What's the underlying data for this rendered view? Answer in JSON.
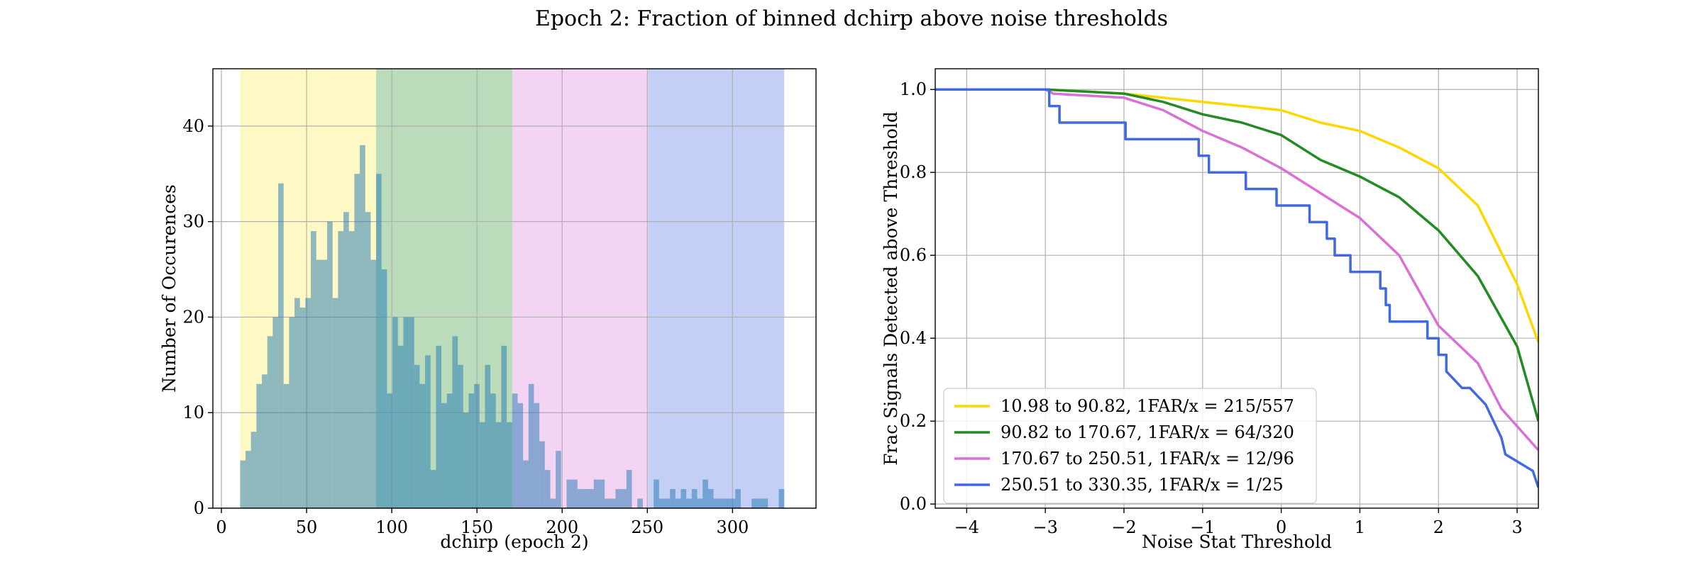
{
  "figure": {
    "title": "Epoch 2: Fraction of binned dchirp above noise thresholds"
  },
  "chart_data": [
    {
      "type": "bar",
      "subtype": "histogram",
      "xlabel": "dchirp (epoch 2)",
      "ylabel": "Number of Occurences",
      "xlim": [
        -5,
        349
      ],
      "ylim": [
        0,
        46
      ],
      "xticks": [
        0,
        50,
        100,
        150,
        200,
        250,
        300
      ],
      "yticks": [
        0,
        10,
        20,
        30,
        40
      ],
      "grid": true,
      "bin_start": 10.98,
      "bin_width": 3.1937,
      "shaded_ranges": [
        {
          "from": 10.98,
          "to": 90.82,
          "color": "#fde93a"
        },
        {
          "from": 90.82,
          "to": 170.67,
          "color": "#1f8a1f"
        },
        {
          "from": 170.67,
          "to": 250.51,
          "color": "#da70d6"
        },
        {
          "from": 250.51,
          "to": 330.35,
          "color": "#3c5fe0"
        }
      ],
      "bar_color": "#1f77b4",
      "counts": [
        5,
        6,
        8,
        13,
        14,
        18,
        20,
        34,
        13,
        20,
        22,
        21,
        22,
        29,
        26,
        26,
        30,
        22,
        29,
        31,
        29,
        35,
        38,
        31,
        26,
        35,
        25,
        12,
        20,
        17,
        20,
        20,
        15,
        13,
        16,
        4,
        17,
        11,
        12,
        18,
        15,
        10,
        12,
        13,
        9,
        15,
        12,
        9,
        17,
        9,
        12,
        11,
        5,
        13,
        11,
        7,
        4,
        1,
        6,
        0,
        3,
        3,
        2,
        2,
        2,
        3,
        3,
        1,
        1,
        2,
        2,
        4,
        0,
        1,
        0,
        0,
        3,
        1,
        1,
        2,
        1,
        2,
        1,
        2,
        1,
        3,
        2,
        1,
        1,
        1,
        1,
        2,
        0,
        0,
        1,
        1,
        1,
        0,
        0,
        2
      ]
    },
    {
      "type": "line",
      "xlabel": "Noise Stat Threshold",
      "ylabel": "Frac Signals Detected above Threshold",
      "xlim": [
        -4.4,
        3.27
      ],
      "ylim": [
        -0.01,
        1.05
      ],
      "xticks": [
        -4,
        -3,
        -2,
        -1,
        0,
        1,
        2,
        3
      ],
      "xtick_labels": [
        "−4",
        "−3",
        "−2",
        "−1",
        "0",
        "1",
        "2",
        "3"
      ],
      "yticks": [
        0.0,
        0.2,
        0.4,
        0.6,
        0.8,
        1.0
      ],
      "ytick_labels": [
        "0.0",
        "0.2",
        "0.4",
        "0.6",
        "0.8",
        "1.0"
      ],
      "grid": true,
      "legend_position": "lower-left",
      "series": [
        {
          "name": "10.98 to 90.82, 1FAR/x = 215/557",
          "color": "#ffd700",
          "step": false,
          "points": [
            [
              -4.4,
              1.0
            ],
            [
              -3.0,
              1.0
            ],
            [
              -2.0,
              0.99
            ],
            [
              -1.5,
              0.98
            ],
            [
              -1.0,
              0.97
            ],
            [
              -0.5,
              0.96
            ],
            [
              0.0,
              0.95
            ],
            [
              0.5,
              0.92
            ],
            [
              1.0,
              0.9
            ],
            [
              1.5,
              0.86
            ],
            [
              2.0,
              0.81
            ],
            [
              2.5,
              0.72
            ],
            [
              3.0,
              0.53
            ],
            [
              3.27,
              0.39
            ]
          ]
        },
        {
          "name": "90.82 to 170.67, 1FAR/x = 64/320",
          "color": "#228b22",
          "step": false,
          "points": [
            [
              -4.4,
              1.0
            ],
            [
              -3.0,
              1.0
            ],
            [
              -2.0,
              0.99
            ],
            [
              -1.5,
              0.97
            ],
            [
              -1.0,
              0.94
            ],
            [
              -0.5,
              0.92
            ],
            [
              0.0,
              0.89
            ],
            [
              0.5,
              0.83
            ],
            [
              1.0,
              0.79
            ],
            [
              1.5,
              0.74
            ],
            [
              2.0,
              0.66
            ],
            [
              2.5,
              0.55
            ],
            [
              3.0,
              0.38
            ],
            [
              3.27,
              0.2
            ]
          ]
        },
        {
          "name": "170.67 to 250.51, 1FAR/x = 12/96",
          "color": "#da70d6",
          "step": false,
          "points": [
            [
              -4.4,
              1.0
            ],
            [
              -3.0,
              1.0
            ],
            [
              -2.9,
              0.99
            ],
            [
              -2.0,
              0.98
            ],
            [
              -1.5,
              0.95
            ],
            [
              -1.0,
              0.9
            ],
            [
              -0.5,
              0.86
            ],
            [
              0.0,
              0.81
            ],
            [
              0.5,
              0.75
            ],
            [
              1.0,
              0.69
            ],
            [
              1.5,
              0.6
            ],
            [
              2.0,
              0.43
            ],
            [
              2.5,
              0.34
            ],
            [
              2.8,
              0.23
            ],
            [
              3.27,
              0.13
            ]
          ]
        },
        {
          "name": "250.51 to 330.35, 1FAR/x = 1/25",
          "color": "#4169e1",
          "step": true,
          "points": [
            [
              -4.4,
              1.0
            ],
            [
              -2.95,
              1.0
            ],
            [
              -2.95,
              0.96
            ],
            [
              -2.82,
              0.96
            ],
            [
              -2.82,
              0.92
            ],
            [
              -1.98,
              0.92
            ],
            [
              -1.98,
              0.88
            ],
            [
              -1.05,
              0.88
            ],
            [
              -1.05,
              0.84
            ],
            [
              -0.92,
              0.84
            ],
            [
              -0.92,
              0.8
            ],
            [
              -0.45,
              0.8
            ],
            [
              -0.45,
              0.76
            ],
            [
              -0.06,
              0.76
            ],
            [
              -0.06,
              0.72
            ],
            [
              0.36,
              0.72
            ],
            [
              0.36,
              0.68
            ],
            [
              0.58,
              0.68
            ],
            [
              0.58,
              0.64
            ],
            [
              0.68,
              0.64
            ],
            [
              0.68,
              0.6
            ],
            [
              0.88,
              0.6
            ],
            [
              0.88,
              0.56
            ],
            [
              1.26,
              0.56
            ],
            [
              1.26,
              0.52
            ],
            [
              1.33,
              0.52
            ],
            [
              1.33,
              0.48
            ],
            [
              1.38,
              0.48
            ],
            [
              1.38,
              0.44
            ],
            [
              1.86,
              0.44
            ],
            [
              1.86,
              0.4
            ],
            [
              2.0,
              0.4
            ],
            [
              2.0,
              0.36
            ],
            [
              2.1,
              0.36
            ],
            [
              2.1,
              0.32
            ],
            [
              2.3,
              0.28
            ],
            [
              2.4,
              0.28
            ],
            [
              2.6,
              0.24
            ],
            [
              2.7,
              0.2
            ],
            [
              2.8,
              0.16
            ],
            [
              2.85,
              0.12
            ],
            [
              3.2,
              0.08
            ],
            [
              3.27,
              0.04
            ]
          ]
        }
      ]
    }
  ]
}
